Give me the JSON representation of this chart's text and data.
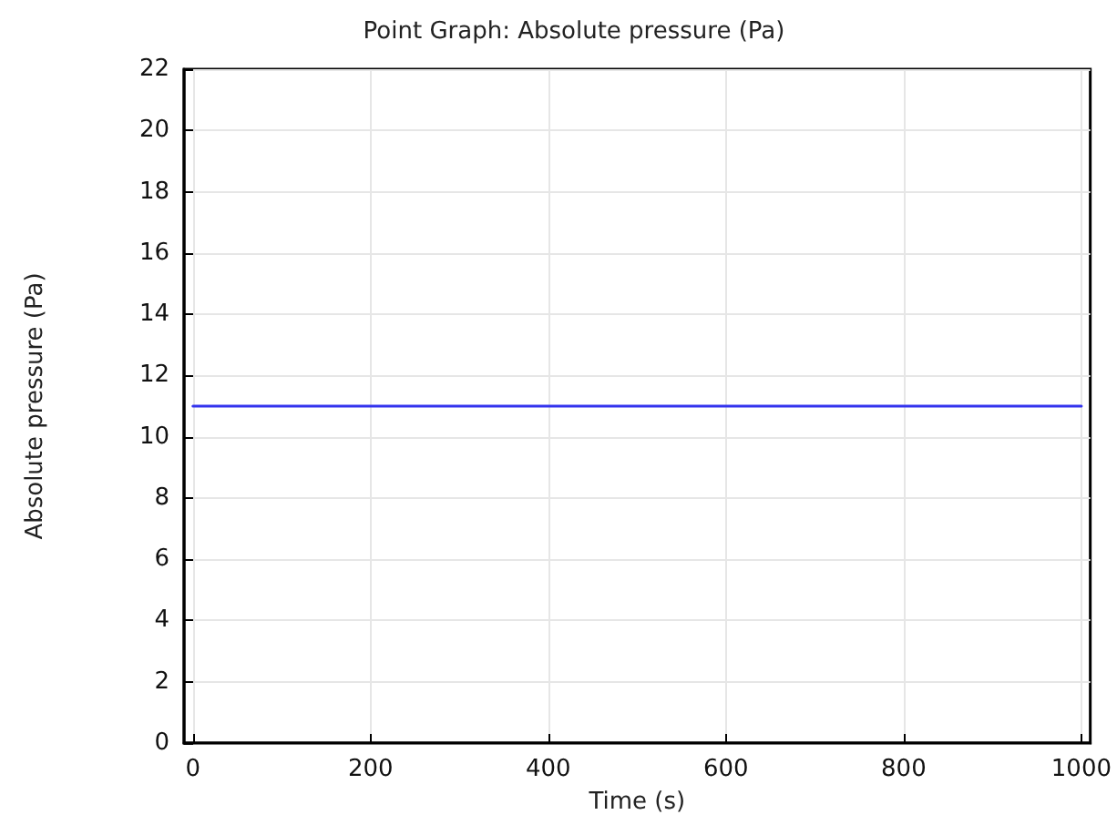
{
  "chart_data": {
    "type": "line",
    "title": "Point Graph: Absolute pressure (Pa)",
    "xlabel": "Time (s)",
    "ylabel": "Absolute pressure (Pa)",
    "x": [
      0,
      1000
    ],
    "series": [
      {
        "color": "#3333ee",
        "values": [
          11,
          11
        ]
      }
    ],
    "xlim": [
      -10,
      1010
    ],
    "xticks": [
      0,
      200,
      400,
      600,
      800,
      1000
    ],
    "ylim": [
      0,
      22
    ],
    "yticks": [
      0,
      2,
      4,
      6,
      8,
      10,
      12,
      14,
      16,
      18,
      20,
      22
    ],
    "grid": true,
    "marker": "none",
    "line_style": "solid"
  }
}
